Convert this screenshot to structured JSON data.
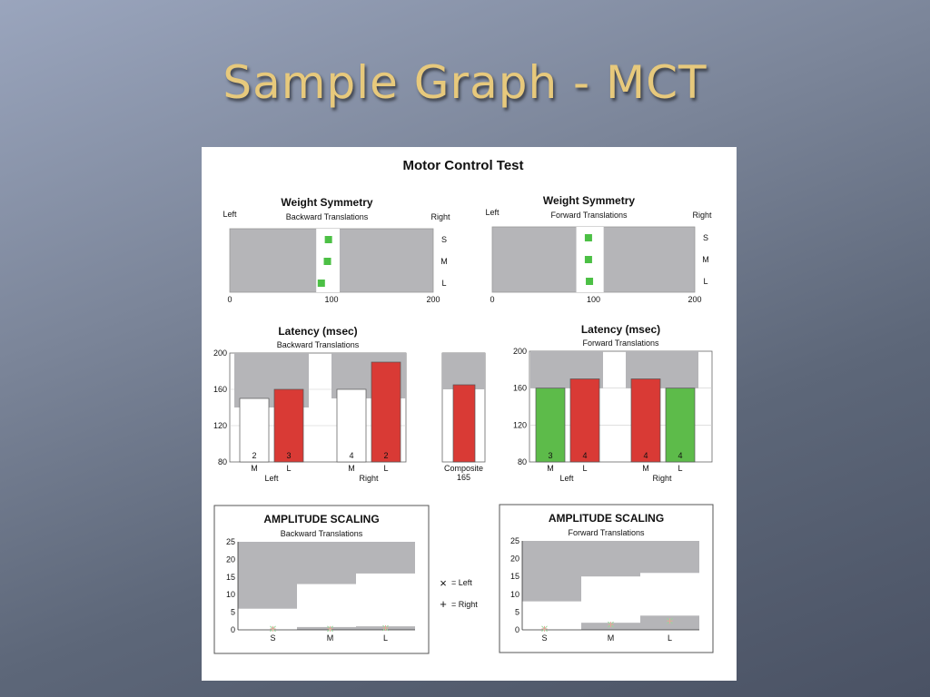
{
  "slide": {
    "title": "Sample Graph - MCT"
  },
  "report": {
    "title": "Motor Control Test"
  },
  "colors": {
    "gray_band": "#b5b5b8",
    "green": "#5dbb4a",
    "red": "#d93a35",
    "marker_green": "#4cc045"
  },
  "legend": {
    "left_symbol": "×",
    "left_label": "= Left",
    "right_symbol": "+",
    "right_label": "= Right"
  },
  "chart_data": [
    {
      "id": "ws_back",
      "type": "scatter",
      "title": "Weight Symmetry",
      "subtitle": "Backward Translations",
      "left_label": "Left",
      "right_label": "Right",
      "xlim": [
        0,
        200
      ],
      "xticks": [
        "0",
        "100",
        "200"
      ],
      "rows": [
        "S",
        "M",
        "L"
      ],
      "normal_range": [
        85,
        108
      ],
      "points": [
        {
          "row": "S",
          "x": 97
        },
        {
          "row": "M",
          "x": 96
        },
        {
          "row": "L",
          "x": 90
        }
      ]
    },
    {
      "id": "ws_fwd",
      "type": "scatter",
      "title": "Weight Symmetry",
      "subtitle": "Forward Translations",
      "left_label": "Left",
      "right_label": "Right",
      "xlim": [
        0,
        200
      ],
      "xticks": [
        "0",
        "100",
        "200"
      ],
      "rows": [
        "S",
        "M",
        "L"
      ],
      "normal_range": [
        83,
        110
      ],
      "points": [
        {
          "row": "S",
          "x": 95
        },
        {
          "row": "M",
          "x": 95
        },
        {
          "row": "L",
          "x": 96
        }
      ]
    },
    {
      "id": "lat_back",
      "type": "bar",
      "title": "Latency (msec)",
      "subtitle": "Backward Translations",
      "ylim": [
        80,
        200
      ],
      "yticks": [
        "80",
        "120",
        "160",
        "200"
      ],
      "groups": [
        {
          "label": "Left",
          "bars": [
            {
              "cat": "M",
              "value": 150,
              "count": "2",
              "color": "none",
              "normal_max": 150
            },
            {
              "cat": "L",
              "value": 160,
              "count": "3",
              "color": "red",
              "normal_max": 140
            }
          ]
        },
        {
          "label": "Right",
          "bars": [
            {
              "cat": "M",
              "value": 160,
              "count": "4",
              "color": "none",
              "normal_max": 160
            },
            {
              "cat": "L",
              "value": 190,
              "count": "2",
              "color": "red",
              "normal_max": 150
            }
          ]
        }
      ]
    },
    {
      "id": "lat_comp",
      "type": "bar",
      "ylim": [
        80,
        200
      ],
      "label": "Composite",
      "value": 165,
      "value_label": "165",
      "color": "red",
      "normal_max": 160
    },
    {
      "id": "lat_fwd",
      "type": "bar",
      "title": "Latency (msec)",
      "subtitle": "Forward Translations",
      "ylim": [
        80,
        200
      ],
      "yticks": [
        "80",
        "120",
        "160",
        "200"
      ],
      "groups": [
        {
          "label": "Left",
          "bars": [
            {
              "cat": "M",
              "value": 160,
              "count": "3",
              "color": "green",
              "normal_max": 160
            },
            {
              "cat": "L",
              "value": 170,
              "count": "4",
              "color": "red",
              "normal_max": 160
            }
          ]
        },
        {
          "label": "Right",
          "bars": [
            {
              "cat": "M",
              "value": 170,
              "count": "4",
              "color": "red",
              "normal_max": 160
            },
            {
              "cat": "L",
              "value": 160,
              "count": "4",
              "color": "green",
              "normal_max": 160
            }
          ]
        }
      ]
    },
    {
      "id": "amp_back",
      "type": "scatter",
      "title": "AMPLITUDE SCALING",
      "subtitle": "Backward Translations",
      "ylim": [
        0,
        25
      ],
      "yticks": [
        "0",
        "5",
        "10",
        "15",
        "20",
        "25"
      ],
      "categories": [
        "S",
        "M",
        "L"
      ],
      "normal_range": [
        [
          0,
          6
        ],
        [
          0.8,
          13
        ],
        [
          1,
          16
        ]
      ],
      "left_points": [
        0.3,
        0.3,
        0.5
      ],
      "right_points": [
        0.3,
        0.3,
        0.5
      ]
    },
    {
      "id": "amp_fwd",
      "type": "scatter",
      "title": "AMPLITUDE SCALING",
      "subtitle": "Forward Translations",
      "ylim": [
        0,
        25
      ],
      "yticks": [
        "0",
        "5",
        "10",
        "15",
        "20",
        "25"
      ],
      "categories": [
        "S",
        "M",
        "L"
      ],
      "normal_range": [
        [
          0,
          8
        ],
        [
          2,
          15
        ],
        [
          4,
          16
        ]
      ],
      "left_points": [
        0.3,
        1.5,
        2.5
      ],
      "right_points": [
        0.3,
        1.5,
        2.5
      ]
    }
  ]
}
